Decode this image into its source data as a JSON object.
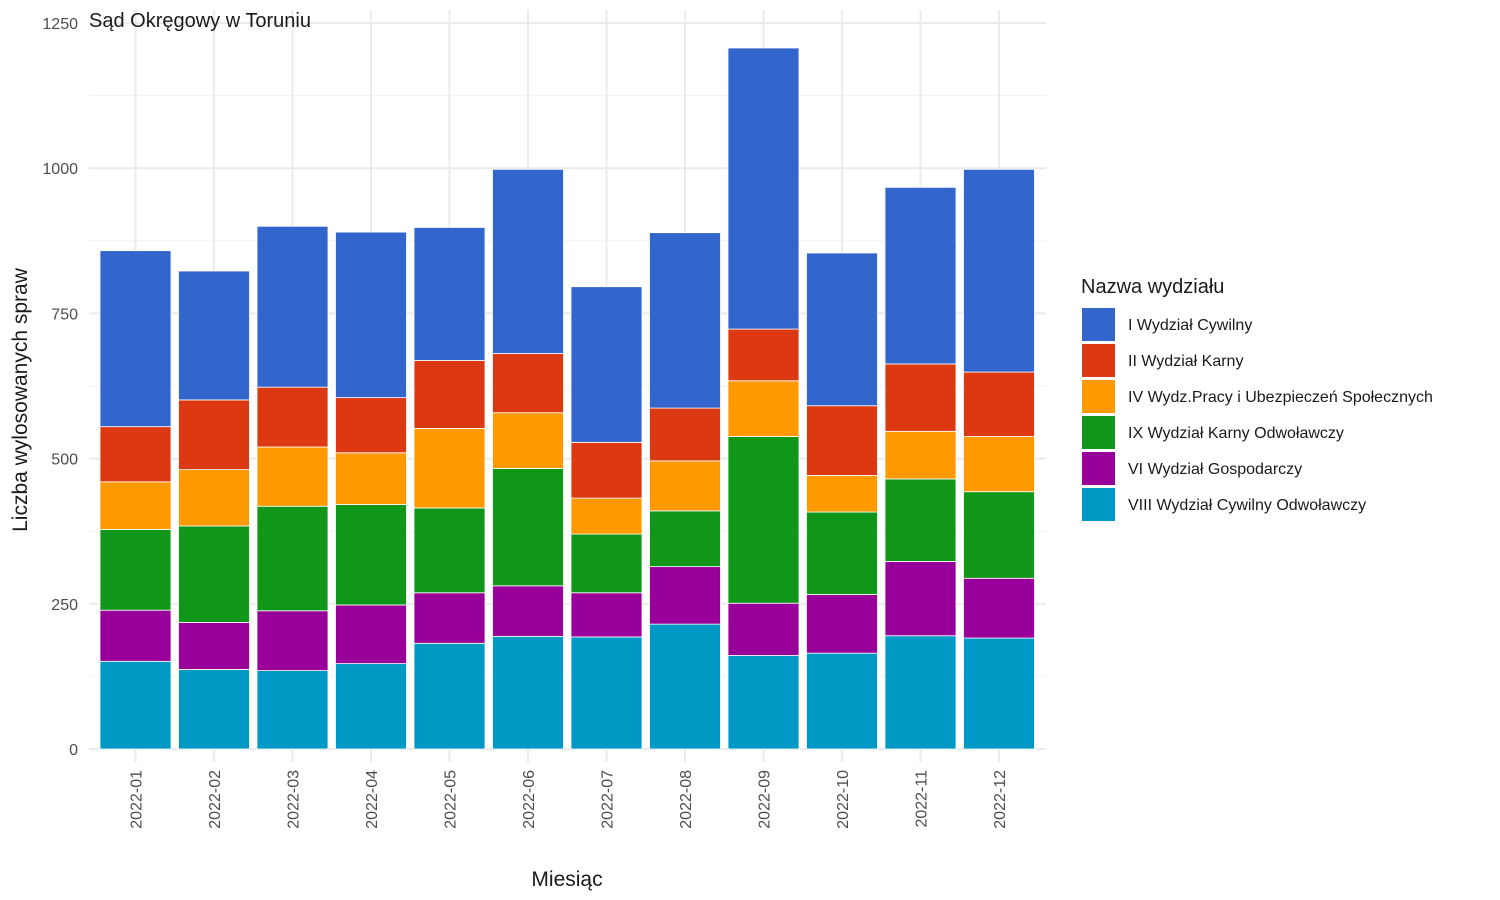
{
  "chart_data": {
    "type": "bar",
    "stacked": true,
    "title": "Sąd Okręgowy w Toruniu",
    "xlabel": "Miesiąc",
    "ylabel": "Liczba wylosowanych spraw",
    "ylim": [
      0,
      1250
    ],
    "yticks": [
      "0",
      "250",
      "500",
      "750",
      "1000",
      "1250"
    ],
    "grid": true,
    "legend_position": "right",
    "legend_title": "Nazwa wydziału",
    "categories": [
      "2022-01",
      "2022-02",
      "2022-03",
      "2022-04",
      "2022-05",
      "2022-06",
      "2022-07",
      "2022-08",
      "2022-09",
      "2022-10",
      "2022-11",
      "2022-12"
    ],
    "series": [
      {
        "name": "I Wydział Cywilny",
        "color": "#3366CC",
        "values": [
          303,
          222,
          277,
          285,
          229,
          317,
          268,
          302,
          484,
          263,
          304,
          349
        ]
      },
      {
        "name": "II Wydział Karny",
        "color": "#DC3912",
        "values": [
          95,
          120,
          103,
          95,
          117,
          102,
          96,
          91,
          89,
          120,
          116,
          111
        ]
      },
      {
        "name": "IV Wydz.Pracy i Ubezpieczeń Społecznych",
        "color": "#FF9900",
        "values": [
          82,
          97,
          102,
          89,
          137,
          96,
          62,
          86,
          96,
          63,
          82,
          95
        ]
      },
      {
        "name": "IX Wydział Karny Odwoławczy",
        "color": "#109618",
        "values": [
          139,
          166,
          180,
          173,
          146,
          202,
          101,
          96,
          287,
          142,
          142,
          149
        ]
      },
      {
        "name": "VI Wydział Gospodarczy",
        "color": "#990099",
        "values": [
          88,
          81,
          103,
          101,
          87,
          87,
          76,
          99,
          90,
          101,
          128,
          103
        ]
      },
      {
        "name": "VIII Wydział Cywilny Odwoławczy",
        "color": "#0099C6",
        "values": [
          151,
          137,
          135,
          147,
          182,
          194,
          193,
          215,
          161,
          165,
          195,
          191
        ]
      }
    ]
  }
}
